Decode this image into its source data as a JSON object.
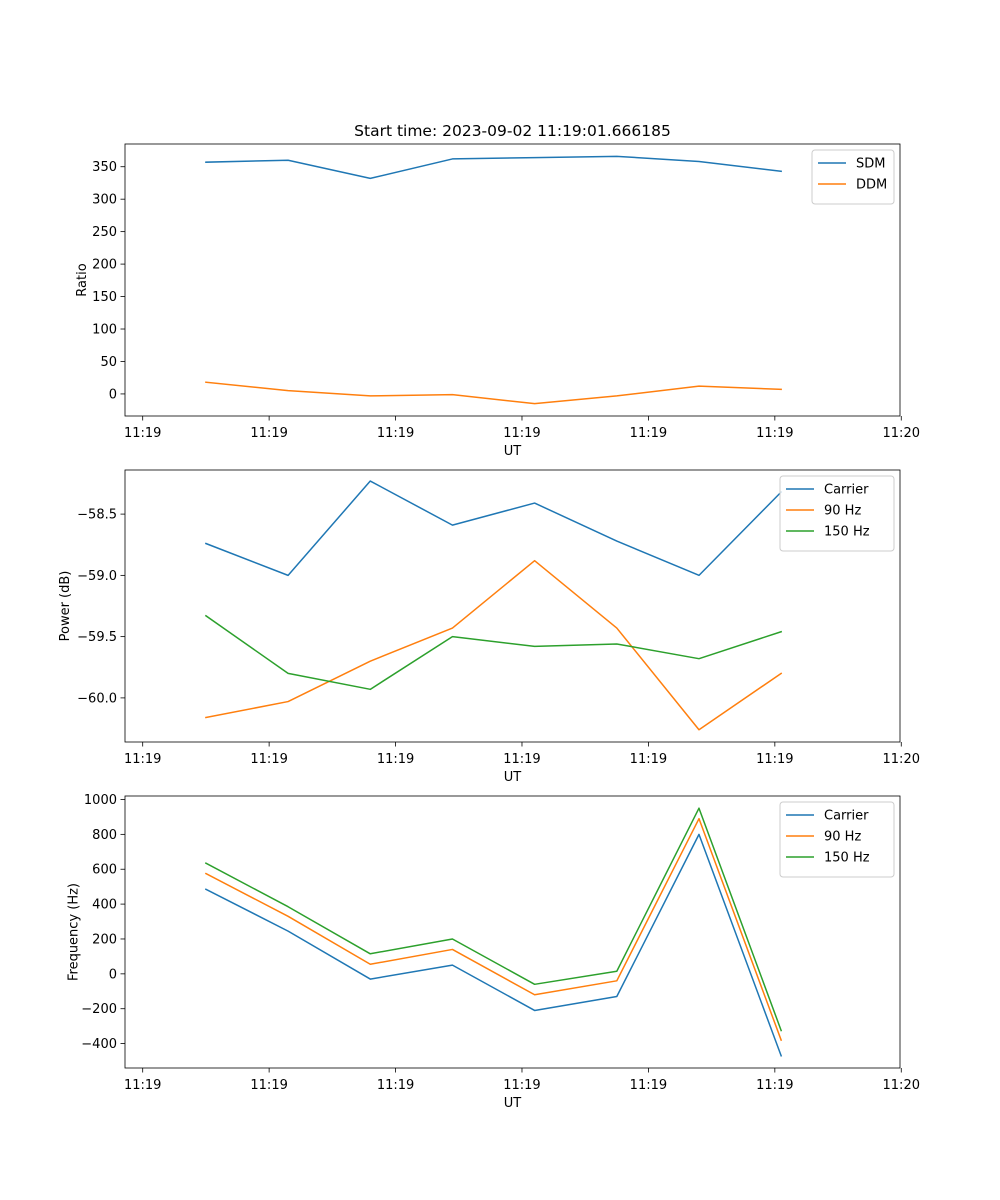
{
  "title": "Start time: 2023-09-02 11:19:01.666185",
  "colors": {
    "blue": "#1f77b4",
    "orange": "#ff7f0e",
    "green": "#2ca02c"
  },
  "chart_data": [
    {
      "type": "line",
      "title": "Start time: 2023-09-02 11:19:01.666185",
      "xlabel": "UT",
      "ylabel": "Ratio",
      "x": [
        0.5,
        1.15,
        1.8,
        2.45,
        3.1,
        3.75,
        4.4,
        5.05
      ],
      "xlim": [
        -0.14,
        5.99
      ],
      "xticks": [
        0,
        1,
        2,
        3,
        4,
        5,
        6
      ],
      "xtick_labels": [
        "11:19",
        "11:19",
        "11:19",
        "11:19",
        "11:19",
        "11:19",
        "11:20"
      ],
      "ylim": [
        -34,
        385
      ],
      "yticks": [
        0,
        50,
        100,
        150,
        200,
        250,
        300,
        350
      ],
      "ytick_labels": [
        "0",
        "50",
        "100",
        "150",
        "200",
        "250",
        "300",
        "350"
      ],
      "legend": "top-right",
      "series": [
        {
          "name": "SDM",
          "color": "#1f77b4",
          "values": [
            357,
            360,
            332,
            362,
            364,
            366,
            358,
            343
          ]
        },
        {
          "name": "DDM",
          "color": "#ff7f0e",
          "values": [
            18,
            5,
            -3,
            -1,
            -15,
            -3,
            12,
            7
          ]
        }
      ]
    },
    {
      "type": "line",
      "title": "",
      "xlabel": "UT",
      "ylabel": "Power (dB)",
      "x": [
        0.5,
        1.15,
        1.8,
        2.45,
        3.1,
        3.75,
        4.4,
        5.05
      ],
      "xlim": [
        -0.14,
        5.99
      ],
      "xticks": [
        0,
        1,
        2,
        3,
        4,
        5,
        6
      ],
      "xtick_labels": [
        "11:19",
        "11:19",
        "11:19",
        "11:19",
        "11:19",
        "11:19",
        "11:20"
      ],
      "ylim": [
        -60.36,
        -58.14
      ],
      "yticks": [
        -60.0,
        -59.5,
        -59.0,
        -58.5
      ],
      "ytick_labels": [
        "−60.0",
        "−59.5",
        "−59.0",
        "−58.5"
      ],
      "legend": "top-right",
      "series": [
        {
          "name": "Carrier",
          "color": "#1f77b4",
          "values": [
            -58.74,
            -59.0,
            -58.23,
            -58.59,
            -58.41,
            -58.72,
            -59.0,
            -58.32
          ]
        },
        {
          "name": "90 Hz",
          "color": "#ff7f0e",
          "values": [
            -60.16,
            -60.03,
            -59.7,
            -59.43,
            -58.88,
            -59.43,
            -60.26,
            -59.8
          ]
        },
        {
          "name": "150 Hz",
          "color": "#2ca02c",
          "values": [
            -59.33,
            -59.8,
            -59.93,
            -59.5,
            -59.58,
            -59.56,
            -59.68,
            -59.46
          ]
        }
      ]
    },
    {
      "type": "line",
      "title": "",
      "xlabel": "UT",
      "ylabel": "Frequency (Hz)",
      "x": [
        0.5,
        1.15,
        1.8,
        2.45,
        3.1,
        3.75,
        4.4,
        5.05
      ],
      "xlim": [
        -0.14,
        5.99
      ],
      "xticks": [
        0,
        1,
        2,
        3,
        4,
        5,
        6
      ],
      "xtick_labels": [
        "11:19",
        "11:19",
        "11:19",
        "11:19",
        "11:19",
        "11:19",
        "11:20"
      ],
      "ylim": [
        -540,
        1020
      ],
      "yticks": [
        -400,
        -200,
        0,
        200,
        400,
        600,
        800,
        1000
      ],
      "ytick_labels": [
        "−400",
        "−200",
        "0",
        "200",
        "400",
        "600",
        "800",
        "1000"
      ],
      "legend": "top-right",
      "series": [
        {
          "name": "Carrier",
          "color": "#1f77b4",
          "values": [
            485,
            245,
            -30,
            50,
            -210,
            -130,
            800,
            -470
          ]
        },
        {
          "name": "90 Hz",
          "color": "#ff7f0e",
          "values": [
            575,
            330,
            55,
            140,
            -120,
            -40,
            890,
            -380
          ]
        },
        {
          "name": "150 Hz",
          "color": "#2ca02c",
          "values": [
            635,
            385,
            115,
            200,
            -60,
            15,
            950,
            -325
          ]
        }
      ]
    }
  ]
}
